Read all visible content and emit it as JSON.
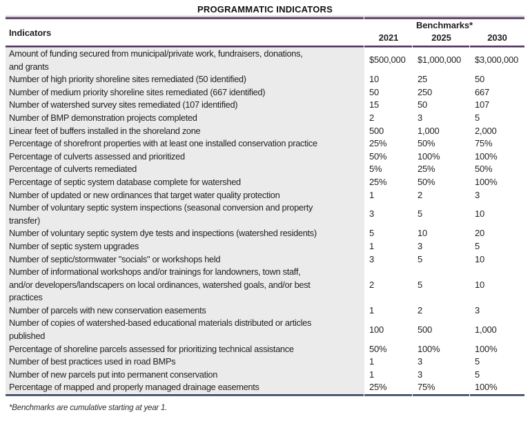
{
  "title": "PROGRAMMATIC INDICATORS",
  "header": {
    "indicators_label": "Indicators",
    "benchmarks_label": "Benchmarks*",
    "years": [
      "2021",
      "2025",
      "2030"
    ]
  },
  "rows": [
    {
      "indicator": "Amount of funding secured from municipal/private work, fundraisers, donations,\nand grants",
      "values": [
        "$500,000",
        "$1,000,000",
        "$3,000,000"
      ]
    },
    {
      "indicator": "Number of high priority shoreline sites remediated (50 identified)",
      "values": [
        "10",
        "25",
        "50"
      ]
    },
    {
      "indicator": "Number of medium priority shoreline sites remediated (667 identified)",
      "values": [
        "50",
        "250",
        "667"
      ]
    },
    {
      "indicator": "Number of watershed survey sites remediated (107 identified)",
      "values": [
        "15",
        "50",
        "107"
      ]
    },
    {
      "indicator": "Number of BMP demonstration projects completed",
      "values": [
        "2",
        "3",
        "5"
      ]
    },
    {
      "indicator": "Linear feet of buffers installed in the shoreland zone",
      "values": [
        "500",
        "1,000",
        "2,000"
      ]
    },
    {
      "indicator": "Percentage of shorefront properties with at least one installed conservation practice",
      "values": [
        "25%",
        "50%",
        "75%"
      ]
    },
    {
      "indicator": "Percentage of culverts assessed and prioritized",
      "values": [
        "50%",
        "100%",
        "100%"
      ]
    },
    {
      "indicator": "Percentage of culverts remediated",
      "values": [
        "5%",
        "25%",
        "50%"
      ]
    },
    {
      "indicator": "Percentage of septic system database complete for watershed",
      "values": [
        "25%",
        "50%",
        "100%"
      ]
    },
    {
      "indicator": "Number of updated or new ordinances that target water quality protection",
      "values": [
        "1",
        "2",
        "3"
      ]
    },
    {
      "indicator": "Number of voluntary septic system inspections (seasonal conversion and property\ntransfer)",
      "values": [
        "3",
        "5",
        "10"
      ]
    },
    {
      "indicator": "Number of voluntary septic system dye tests and inspections (watershed residents)",
      "values": [
        "5",
        "10",
        "20"
      ]
    },
    {
      "indicator": "Number of septic system upgrades",
      "values": [
        "1",
        "3",
        "5"
      ]
    },
    {
      "indicator": "Number of septic/stormwater \"socials\" or workshops held",
      "values": [
        "3",
        "5",
        "10"
      ]
    },
    {
      "indicator": "Number of informational workshops and/or trainings for landowners, town staff,\nand/or developers/landscapers on local ordinances, watershed goals, and/or best\npractices",
      "values": [
        "2",
        "5",
        "10"
      ]
    },
    {
      "indicator": "Number of parcels with new conservation easements",
      "values": [
        "1",
        "2",
        "3"
      ]
    },
    {
      "indicator": "Number of copies of watershed-based educational materials distributed or articles\npublished",
      "values": [
        "100",
        "500",
        "1,000"
      ]
    },
    {
      "indicator": "Percentage of shoreline parcels assessed for prioritizing technical assistance",
      "values": [
        "50%",
        "100%",
        "100%"
      ]
    },
    {
      "indicator": "Number of best practices used in road BMPs",
      "values": [
        "1",
        "3",
        "5"
      ]
    },
    {
      "indicator": "Number of new parcels put into permanent conservation",
      "values": [
        "1",
        "3",
        "5"
      ]
    },
    {
      "indicator": "Percentage of mapped and properly managed drainage easements",
      "values": [
        "25%",
        "75%",
        "100%"
      ]
    }
  ],
  "footnote": "*Benchmarks are cumulative starting at year 1.",
  "colors": {
    "header_rule": "#4e3258",
    "bottom_rule": "#3d4b62",
    "indicator_column_shade": "#ebebeb"
  }
}
